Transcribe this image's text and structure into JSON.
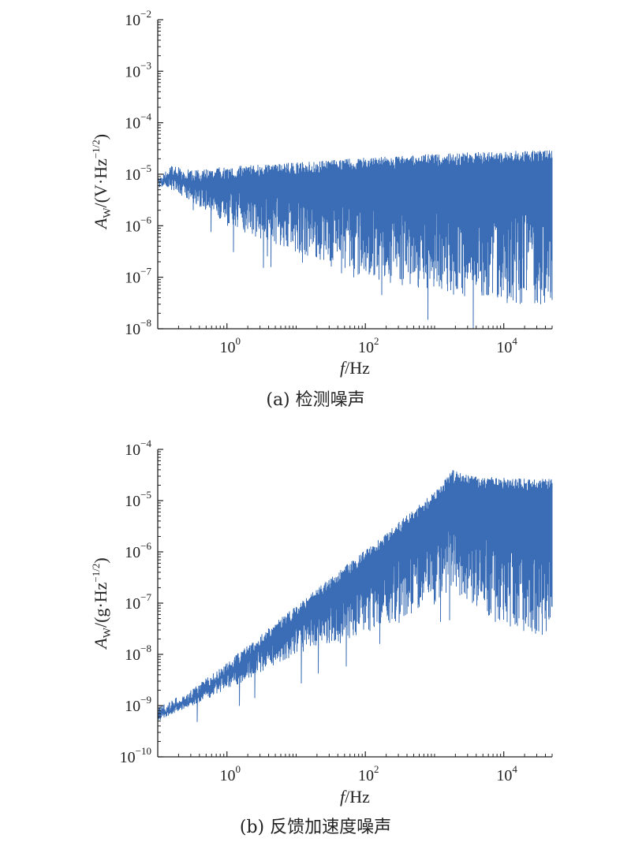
{
  "chart_data": [
    {
      "type": "line",
      "panel": "a",
      "caption": "(a) 检测噪声",
      "xlabel_italic": "f",
      "xlabel_rest": "/Hz",
      "ylabel_A": "A",
      "ylabel_sub": "W",
      "ylabel_rest": "/(V·Hz",
      "ylabel_sup": "−1/2",
      "ylabel_close": ")",
      "xscale": "log",
      "yscale": "log",
      "xlim": [
        0.1,
        50000
      ],
      "ylim": [
        1e-08,
        0.01
      ],
      "x_ticks": [
        {
          "base": "10",
          "exp": "0",
          "v": 1
        },
        {
          "base": "10",
          "exp": "2",
          "v": 100
        },
        {
          "base": "10",
          "exp": "4",
          "v": 10000
        }
      ],
      "y_ticks": [
        {
          "base": "10",
          "exp": "−8",
          "v": -8
        },
        {
          "base": "10",
          "exp": "−7",
          "v": -7
        },
        {
          "base": "10",
          "exp": "−6",
          "v": -6
        },
        {
          "base": "10",
          "exp": "−5",
          "v": -5
        },
        {
          "base": "10",
          "exp": "−4",
          "v": -4
        },
        {
          "base": "10",
          "exp": "−3",
          "v": -3
        },
        {
          "base": "10",
          "exp": "−2",
          "v": -2
        }
      ],
      "series_color": "#3a6db5",
      "upper_envelope": [
        [
          0.1,
          8e-06
        ],
        [
          0.15,
          1.5e-05
        ],
        [
          0.3,
          1.2e-05
        ],
        [
          1,
          1.4e-05
        ],
        [
          10,
          1.7e-05
        ],
        [
          100,
          2.1e-05
        ],
        [
          1000,
          2.5e-05
        ],
        [
          10000,
          2.8e-05
        ],
        [
          50000,
          3e-05
        ]
      ],
      "lower_envelope": [
        [
          0.1,
          7e-06
        ],
        [
          0.3,
          3e-06
        ],
        [
          1,
          1e-06
        ],
        [
          10,
          3e-07
        ],
        [
          100,
          1e-07
        ],
        [
          1000,
          5e-08
        ],
        [
          10000,
          3e-08
        ],
        [
          50000,
          3e-08
        ]
      ]
    },
    {
      "type": "line",
      "panel": "b",
      "caption": "(b) 反馈加速度噪声",
      "xlabel_italic": "f",
      "xlabel_rest": "/Hz",
      "ylabel_A": "A",
      "ylabel_sub": "W",
      "ylabel_rest": "/(g·Hz",
      "ylabel_sup": "−1/2",
      "ylabel_close": ")",
      "xscale": "log",
      "yscale": "log",
      "xlim": [
        0.1,
        50000
      ],
      "ylim": [
        1e-10,
        0.0001
      ],
      "x_ticks": [
        {
          "base": "10",
          "exp": "0",
          "v": 1
        },
        {
          "base": "10",
          "exp": "2",
          "v": 100
        },
        {
          "base": "10",
          "exp": "4",
          "v": 10000
        }
      ],
      "y_ticks": [
        {
          "base": "10",
          "exp": "−10",
          "v": -10
        },
        {
          "base": "10",
          "exp": "−9",
          "v": -9
        },
        {
          "base": "10",
          "exp": "−8",
          "v": -8
        },
        {
          "base": "10",
          "exp": "−7",
          "v": -7
        },
        {
          "base": "10",
          "exp": "−6",
          "v": -6
        },
        {
          "base": "10",
          "exp": "−5",
          "v": -5
        },
        {
          "base": "10",
          "exp": "−4",
          "v": -4
        }
      ],
      "series_color": "#3a6db5",
      "upper_envelope": [
        [
          0.1,
          1e-09
        ],
        [
          0.3,
          2e-09
        ],
        [
          1,
          7e-09
        ],
        [
          10,
          9e-08
        ],
        [
          100,
          1.1e-06
        ],
        [
          1000,
          1.5e-05
        ],
        [
          1800,
          4e-05
        ],
        [
          3000,
          3.2e-05
        ],
        [
          10000,
          2.8e-05
        ],
        [
          50000,
          2.7e-05
        ]
      ],
      "lower_envelope": [
        [
          0.1,
          5e-10
        ],
        [
          1,
          2e-09
        ],
        [
          10,
          1e-08
        ],
        [
          100,
          2.5e-08
        ],
        [
          1000,
          9e-08
        ],
        [
          1800,
          2e-07
        ],
        [
          3000,
          1e-07
        ],
        [
          10000,
          3e-08
        ],
        [
          50000,
          2e-08
        ]
      ]
    }
  ]
}
